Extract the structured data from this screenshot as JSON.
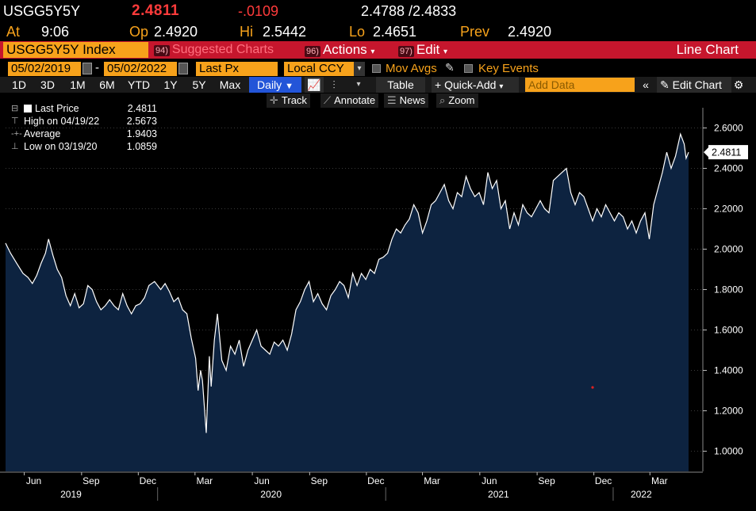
{
  "header": {
    "ticker": "USGG5Y5Y",
    "last": "2.4811",
    "change": "-.0109",
    "bid_ask": "2.4788 /2.4833",
    "at_label": "At",
    "at_value": "9:06",
    "op_label": "Op",
    "op_value": "2.4920",
    "hi_label": "Hi",
    "hi_value": "2.5442",
    "lo_label": "Lo",
    "lo_value": "2.4651",
    "prev_label": "Prev",
    "prev_value": "2.4920"
  },
  "toolbar": {
    "index_name": "USGG5Y5Y Index",
    "suggested_num": "94)",
    "suggested_label": "Suggested Charts",
    "actions_num": "96)",
    "actions_label": "Actions",
    "edit_num": "97)",
    "edit_label": "Edit",
    "screen_title": "Line Chart"
  },
  "range": {
    "start_date": "05/02/2019",
    "end_date": "05/02/2022",
    "field": "Last Px",
    "currency": "Local CCY",
    "mov_avgs": "Mov Avgs",
    "key_events": "Key Events"
  },
  "periods": [
    "1D",
    "3D",
    "1M",
    "6M",
    "YTD",
    "1Y",
    "5Y",
    "Max"
  ],
  "frequency": "Daily",
  "tools": {
    "table": "Table",
    "quick_add": "+ Quick-Add",
    "add_data_placeholder": "Add Data",
    "edit_chart": "Edit Chart"
  },
  "chart_tools": [
    "Track",
    "Annotate",
    "News",
    "Zoom"
  ],
  "legend": {
    "last_price_label": "Last Price",
    "last_price_value": "2.4811",
    "high_label": "High on 04/19/22",
    "high_value": "2.5673",
    "average_label": "Average",
    "average_value": "1.9403",
    "low_label": "Low on 03/19/20",
    "low_value": "1.0859"
  },
  "chart_data": {
    "type": "area",
    "x_range": [
      "2019-05-02",
      "2022-05-02"
    ],
    "ylim": [
      0.9,
      2.7
    ],
    "y_ticks": [
      "2.6000",
      "2.4000",
      "2.2000",
      "2.0000",
      "1.8000",
      "1.6000",
      "1.4000",
      "1.2000",
      "1.0000"
    ],
    "y_tick_values": [
      2.6,
      2.4,
      2.2,
      2.0,
      1.8,
      1.6,
      1.4,
      1.2,
      1.0
    ],
    "x_month_ticks": [
      "Jun",
      "Sep",
      "Dec",
      "Mar",
      "Jun",
      "Sep",
      "Dec",
      "Mar",
      "Jun",
      "Sep",
      "Dec",
      "Mar"
    ],
    "x_month_dates": [
      "2019-06-01",
      "2019-09-01",
      "2019-12-01",
      "2020-03-01",
      "2020-06-01",
      "2020-09-01",
      "2020-12-01",
      "2021-03-01",
      "2021-06-01",
      "2021-09-01",
      "2021-12-01",
      "2022-03-01"
    ],
    "x_year_ticks": [
      "2019",
      "2020",
      "2021",
      "2022"
    ],
    "x_year_dates": [
      "2019-08-15",
      "2020-07-01",
      "2021-07-01",
      "2022-02-15"
    ],
    "last_value_label": "2.4811",
    "colors": {
      "line": "#ffffff",
      "fill": "#0d2340",
      "background": "#000000"
    },
    "series": [
      {
        "values": [
          [
            "2019-05-02",
            2.03
          ],
          [
            "2019-05-10",
            1.98
          ],
          [
            "2019-05-20",
            1.93
          ],
          [
            "2019-05-30",
            1.88
          ],
          [
            "2019-06-07",
            1.86
          ],
          [
            "2019-06-14",
            1.83
          ],
          [
            "2019-06-21",
            1.87
          ],
          [
            "2019-06-28",
            1.93
          ],
          [
            "2019-07-05",
            1.98
          ],
          [
            "2019-07-10",
            2.05
          ],
          [
            "2019-07-17",
            1.97
          ],
          [
            "2019-07-24",
            1.9
          ],
          [
            "2019-07-31",
            1.86
          ],
          [
            "2019-08-07",
            1.77
          ],
          [
            "2019-08-14",
            1.72
          ],
          [
            "2019-08-21",
            1.78
          ],
          [
            "2019-08-28",
            1.71
          ],
          [
            "2019-09-04",
            1.73
          ],
          [
            "2019-09-11",
            1.82
          ],
          [
            "2019-09-18",
            1.8
          ],
          [
            "2019-09-25",
            1.74
          ],
          [
            "2019-10-02",
            1.7
          ],
          [
            "2019-10-09",
            1.72
          ],
          [
            "2019-10-16",
            1.75
          ],
          [
            "2019-10-23",
            1.72
          ],
          [
            "2019-10-30",
            1.7
          ],
          [
            "2019-11-06",
            1.78
          ],
          [
            "2019-11-13",
            1.72
          ],
          [
            "2019-11-20",
            1.68
          ],
          [
            "2019-11-27",
            1.72
          ],
          [
            "2019-12-04",
            1.73
          ],
          [
            "2019-12-11",
            1.76
          ],
          [
            "2019-12-18",
            1.82
          ],
          [
            "2019-12-27",
            1.84
          ],
          [
            "2020-01-06",
            1.8
          ],
          [
            "2020-01-13",
            1.83
          ],
          [
            "2020-01-20",
            1.79
          ],
          [
            "2020-01-27",
            1.74
          ],
          [
            "2020-02-03",
            1.76
          ],
          [
            "2020-02-10",
            1.7
          ],
          [
            "2020-02-17",
            1.68
          ],
          [
            "2020-02-24",
            1.56
          ],
          [
            "2020-03-02",
            1.46
          ],
          [
            "2020-03-06",
            1.3
          ],
          [
            "2020-03-10",
            1.4
          ],
          [
            "2020-03-13",
            1.35
          ],
          [
            "2020-03-19",
            1.09
          ],
          [
            "2020-03-24",
            1.47
          ],
          [
            "2020-03-27",
            1.32
          ],
          [
            "2020-04-01",
            1.55
          ],
          [
            "2020-04-06",
            1.68
          ],
          [
            "2020-04-13",
            1.45
          ],
          [
            "2020-04-20",
            1.4
          ],
          [
            "2020-04-27",
            1.52
          ],
          [
            "2020-05-04",
            1.48
          ],
          [
            "2020-05-11",
            1.55
          ],
          [
            "2020-05-18",
            1.42
          ],
          [
            "2020-05-25",
            1.5
          ],
          [
            "2020-06-01",
            1.55
          ],
          [
            "2020-06-08",
            1.6
          ],
          [
            "2020-06-15",
            1.52
          ],
          [
            "2020-06-22",
            1.5
          ],
          [
            "2020-06-29",
            1.48
          ],
          [
            "2020-07-06",
            1.54
          ],
          [
            "2020-07-13",
            1.52
          ],
          [
            "2020-07-20",
            1.55
          ],
          [
            "2020-07-27",
            1.5
          ],
          [
            "2020-08-03",
            1.58
          ],
          [
            "2020-08-10",
            1.7
          ],
          [
            "2020-08-17",
            1.74
          ],
          [
            "2020-08-24",
            1.8
          ],
          [
            "2020-08-31",
            1.84
          ],
          [
            "2020-09-07",
            1.74
          ],
          [
            "2020-09-14",
            1.78
          ],
          [
            "2020-09-21",
            1.73
          ],
          [
            "2020-09-28",
            1.7
          ],
          [
            "2020-10-05",
            1.77
          ],
          [
            "2020-10-12",
            1.8
          ],
          [
            "2020-10-19",
            1.84
          ],
          [
            "2020-10-26",
            1.82
          ],
          [
            "2020-11-02",
            1.76
          ],
          [
            "2020-11-09",
            1.88
          ],
          [
            "2020-11-16",
            1.82
          ],
          [
            "2020-11-23",
            1.88
          ],
          [
            "2020-11-30",
            1.85
          ],
          [
            "2020-12-07",
            1.9
          ],
          [
            "2020-12-14",
            1.88
          ],
          [
            "2020-12-21",
            1.95
          ],
          [
            "2020-12-28",
            1.96
          ],
          [
            "2021-01-04",
            1.98
          ],
          [
            "2021-01-11",
            2.05
          ],
          [
            "2021-01-18",
            2.1
          ],
          [
            "2021-01-25",
            2.08
          ],
          [
            "2021-02-01",
            2.12
          ],
          [
            "2021-02-08",
            2.15
          ],
          [
            "2021-02-15",
            2.22
          ],
          [
            "2021-02-22",
            2.18
          ],
          [
            "2021-03-01",
            2.08
          ],
          [
            "2021-03-08",
            2.14
          ],
          [
            "2021-03-15",
            2.22
          ],
          [
            "2021-03-22",
            2.24
          ],
          [
            "2021-03-29",
            2.28
          ],
          [
            "2021-04-05",
            2.32
          ],
          [
            "2021-04-12",
            2.24
          ],
          [
            "2021-04-19",
            2.2
          ],
          [
            "2021-04-26",
            2.28
          ],
          [
            "2021-05-03",
            2.26
          ],
          [
            "2021-05-10",
            2.36
          ],
          [
            "2021-05-17",
            2.3
          ],
          [
            "2021-05-24",
            2.26
          ],
          [
            "2021-05-31",
            2.28
          ],
          [
            "2021-06-07",
            2.22
          ],
          [
            "2021-06-14",
            2.38
          ],
          [
            "2021-06-21",
            2.3
          ],
          [
            "2021-06-28",
            2.34
          ],
          [
            "2021-07-05",
            2.2
          ],
          [
            "2021-07-12",
            2.24
          ],
          [
            "2021-07-19",
            2.1
          ],
          [
            "2021-07-26",
            2.18
          ],
          [
            "2021-08-02",
            2.12
          ],
          [
            "2021-08-09",
            2.22
          ],
          [
            "2021-08-16",
            2.18
          ],
          [
            "2021-08-23",
            2.16
          ],
          [
            "2021-08-30",
            2.2
          ],
          [
            "2021-09-06",
            2.24
          ],
          [
            "2021-09-13",
            2.2
          ],
          [
            "2021-09-20",
            2.18
          ],
          [
            "2021-09-27",
            2.34
          ],
          [
            "2021-10-04",
            2.36
          ],
          [
            "2021-10-11",
            2.38
          ],
          [
            "2021-10-18",
            2.4
          ],
          [
            "2021-10-25",
            2.28
          ],
          [
            "2021-11-01",
            2.22
          ],
          [
            "2021-11-08",
            2.28
          ],
          [
            "2021-11-15",
            2.26
          ],
          [
            "2021-11-22",
            2.2
          ],
          [
            "2021-11-29",
            2.14
          ],
          [
            "2021-12-06",
            2.2
          ],
          [
            "2021-12-13",
            2.16
          ],
          [
            "2021-12-20",
            2.22
          ],
          [
            "2021-12-27",
            2.18
          ],
          [
            "2022-01-03",
            2.14
          ],
          [
            "2022-01-10",
            2.18
          ],
          [
            "2022-01-17",
            2.16
          ],
          [
            "2022-01-24",
            2.1
          ],
          [
            "2022-01-31",
            2.14
          ],
          [
            "2022-02-07",
            2.08
          ],
          [
            "2022-02-14",
            2.14
          ],
          [
            "2022-02-21",
            2.18
          ],
          [
            "2022-02-28",
            2.05
          ],
          [
            "2022-03-07",
            2.22
          ],
          [
            "2022-03-14",
            2.3
          ],
          [
            "2022-03-21",
            2.38
          ],
          [
            "2022-03-28",
            2.48
          ],
          [
            "2022-04-04",
            2.4
          ],
          [
            "2022-04-11",
            2.46
          ],
          [
            "2022-04-19",
            2.57
          ],
          [
            "2022-04-25",
            2.52
          ],
          [
            "2022-04-28",
            2.45
          ],
          [
            "2022-05-02",
            2.48
          ]
        ]
      }
    ]
  }
}
